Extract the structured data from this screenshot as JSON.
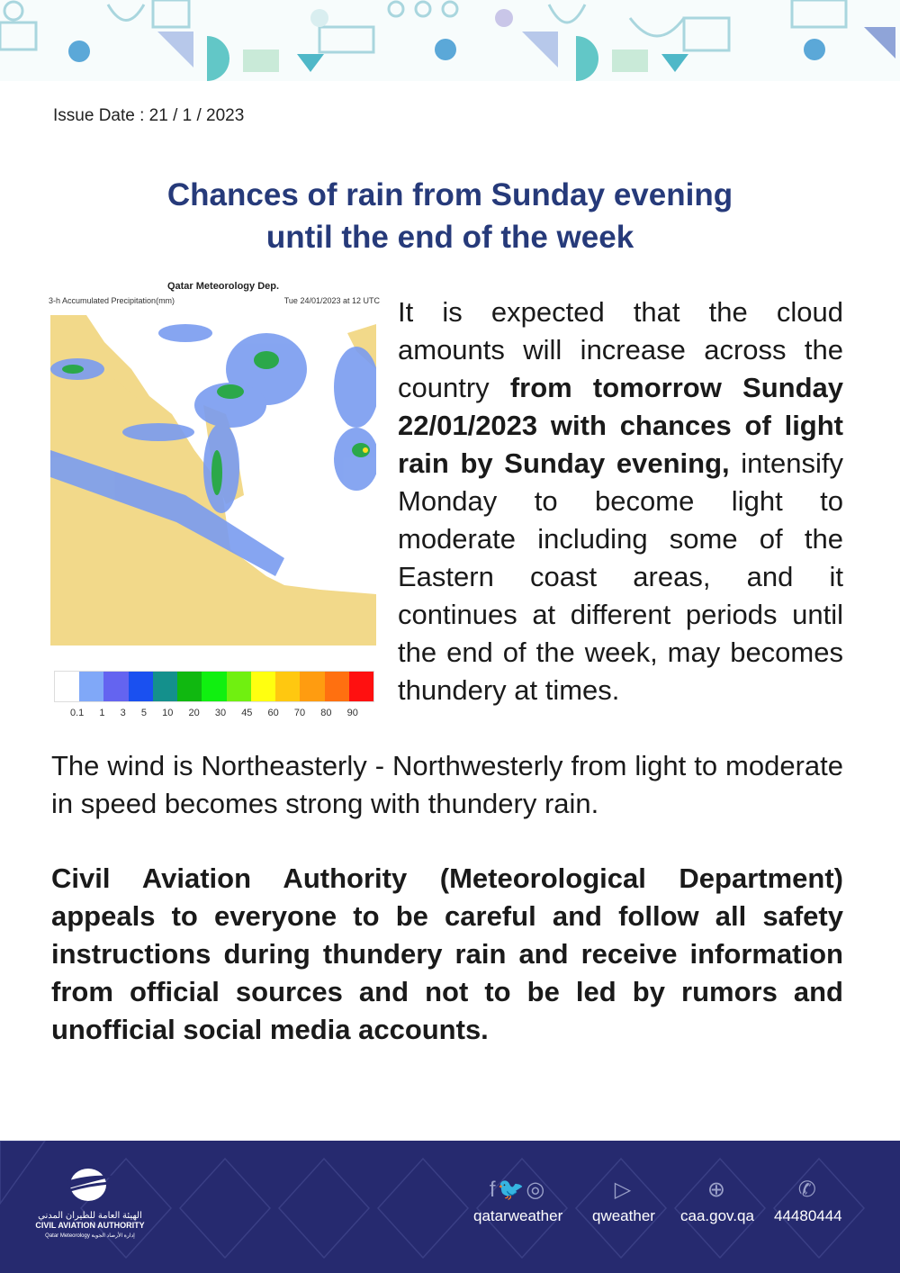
{
  "issue_date": "Issue Date : 21 / 1 / 2023",
  "title_line1": "Chances of rain from Sunday evening",
  "title_line2": "until the end of the week",
  "map": {
    "title": "Qatar Meteorology Dep.",
    "subtitle_left": "3-h Accumulated Precipitation(mm)",
    "subtitle_right": "Tue 24/01/2023 at 12 UTC",
    "legend_labels": [
      "0.1",
      "1",
      "3",
      "5",
      "10",
      "20",
      "30",
      "45",
      "60",
      "70",
      "80",
      "90"
    ],
    "legend_colors": [
      "#ffffff",
      "#80a8f8",
      "#6464f0",
      "#1a50f0",
      "#14908c",
      "#10b810",
      "#10f010",
      "#70f010",
      "#ffff10",
      "#ffc810",
      "#ff9c10",
      "#ff7010",
      "#ff1010"
    ]
  },
  "body": {
    "p1_a": "It is expected that the cloud amounts will increase across the country ",
    "p1_bold": "from tomorrow Sunday 22/01/2023 with chances of light rain by Sunday evening,",
    "p1_b": " intensify Monday to become light to moderate including some of the Eastern coast areas, and it continues at different periods until the end of the week, may becomes thundery at times.",
    "p2": "The wind is Northeasterly - Northwesterly from light to moderate in speed becomes strong with thundery rain.",
    "p3": "Civil Aviation Authority (Meteorological Department) appeals to everyone to be careful and follow all safety instructions during thundery rain and receive information from official sources and not to be led by rumors and unofficial social media accounts."
  },
  "footer": {
    "logo_ar": "الهيئة العامة للطيران المدني",
    "logo_en": "CIVIL AVIATION AUTHORITY",
    "logo_sub": "Qatar Meteorology  إدارة الأرصاد الجوية",
    "contacts": [
      {
        "icon": "social-media-icons",
        "label": "qatarweather"
      },
      {
        "icon": "app-store-icons",
        "label": "qweather"
      },
      {
        "icon": "globe-icon",
        "label": "caa.gov.qa"
      },
      {
        "icon": "phone-icon",
        "label": "44480444"
      }
    ],
    "bg_color": "#262a6f"
  }
}
